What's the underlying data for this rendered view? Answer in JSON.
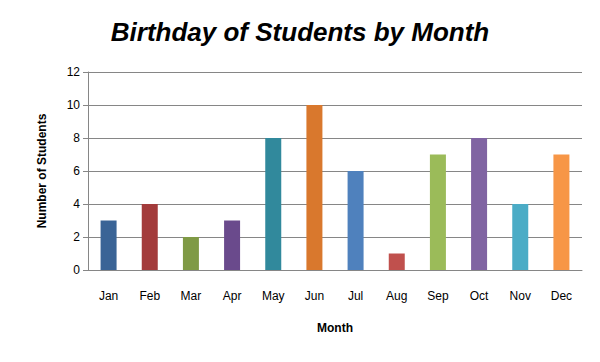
{
  "chart_data": {
    "type": "bar",
    "title": "Birthday of Students by Month",
    "x_label": "Month",
    "y_label": "Number of Students",
    "categories": [
      "Jan",
      "Feb",
      "Mar",
      "Apr",
      "May",
      "Jun",
      "Jul",
      "Aug",
      "Sep",
      "Oct",
      "Nov",
      "Dec"
    ],
    "values": [
      3,
      4,
      2,
      3,
      8,
      10,
      6,
      1,
      7,
      8,
      4,
      7
    ],
    "colors": [
      "#3a6496",
      "#a33b3b",
      "#7f9a45",
      "#6a4a8c",
      "#31899c",
      "#d9782d",
      "#4f81bd",
      "#c0504d",
      "#9bbb59",
      "#8064a2",
      "#4bacc6",
      "#f79646"
    ],
    "ylim": [
      0,
      12
    ],
    "yticks": [
      0,
      2,
      4,
      6,
      8,
      10,
      12
    ],
    "grid": true
  }
}
